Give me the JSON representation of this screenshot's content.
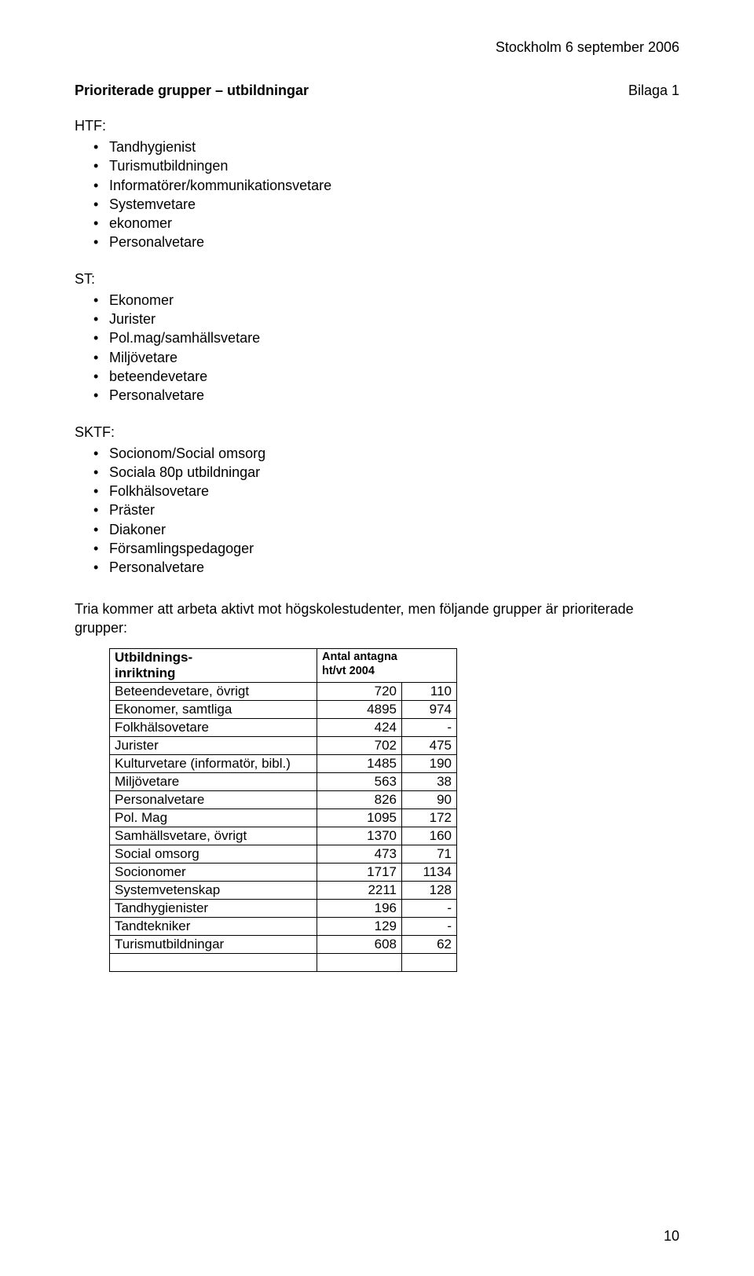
{
  "header": {
    "date_location": "Stockholm 6 september 2006",
    "attachment": "Bilaga 1"
  },
  "title": "Prioriterade grupper – utbildningar",
  "groups": [
    {
      "label": "HTF:",
      "items": [
        "Tandhygienist",
        "Turismutbildningen",
        "Informatörer/kommunikationsvetare",
        "Systemvetare",
        "ekonomer",
        "Personalvetare"
      ]
    },
    {
      "label": "ST:",
      "items": [
        "Ekonomer",
        "Jurister",
        "Pol.mag/samhällsvetare",
        "Miljövetare",
        "beteendevetare",
        "Personalvetare"
      ]
    },
    {
      "label": "SKTF:",
      "items": [
        "Socionom/Social omsorg",
        "Sociala 80p utbildningar",
        "Folkhälsovetare",
        "Präster",
        "Diakoner",
        "Församlingspedagoger",
        "Personalvetare"
      ]
    }
  ],
  "table_intro": "Tria kommer att arbeta aktivt mot högskolestudenter, men följande grupper är prioriterade grupper:",
  "table": {
    "head_col1_line1": "Utbildnings-",
    "head_col1_line2": "inriktning",
    "head_col2_line1": "Antal antagna",
    "head_col2_line2": "ht/vt 2004",
    "rows": [
      {
        "name": "Beteendevetare, övrigt",
        "v1": "720",
        "v2": "110"
      },
      {
        "name": "Ekonomer, samtliga",
        "v1": "4895",
        "v2": "974"
      },
      {
        "name": "Folkhälsovetare",
        "v1": "424",
        "v2": "-"
      },
      {
        "name": "Jurister",
        "v1": "702",
        "v2": "475"
      },
      {
        "name": "Kulturvetare (informatör, bibl.)",
        "v1": "1485",
        "v2": "190"
      },
      {
        "name": "Miljövetare",
        "v1": "563",
        "v2": "38"
      },
      {
        "name": "Personalvetare",
        "v1": "826",
        "v2": "90"
      },
      {
        "name": "Pol. Mag",
        "v1": "1095",
        "v2": "172"
      },
      {
        "name": "Samhällsvetare, övrigt",
        "v1": "1370",
        "v2": "160"
      },
      {
        "name": "Social omsorg",
        "v1": "473",
        "v2": "71"
      },
      {
        "name": "Socionomer",
        "v1": "1717",
        "v2": "1134"
      },
      {
        "name": "Systemvetenskap",
        "v1": "2211",
        "v2": "128"
      },
      {
        "name": "Tandhygienister",
        "v1": "196",
        "v2": "-"
      },
      {
        "name": "Tandtekniker",
        "v1": "129",
        "v2": "-"
      },
      {
        "name": "Turismutbildningar",
        "v1": "608",
        "v2": "62"
      },
      {
        "name": "",
        "v1": "",
        "v2": ""
      }
    ]
  },
  "page_number": "10"
}
